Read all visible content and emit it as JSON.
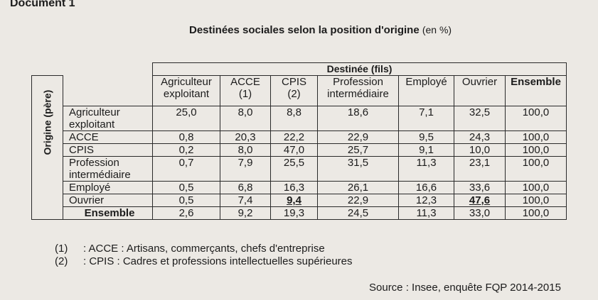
{
  "document_label": "Document 1",
  "title": "Destinées sociales selon la position d'origine",
  "title_unit": "(en %)",
  "destination_header": "Destinée (fils)",
  "origin_header": "Origine (père)",
  "columns": [
    {
      "label_line1": "Agriculteur",
      "label_line2": "exploitant",
      "bold": false
    },
    {
      "label_line1": "ACCE",
      "label_line2": "(1)",
      "bold": false
    },
    {
      "label_line1": "CPIS",
      "label_line2": "(2)",
      "bold": false
    },
    {
      "label_line1": "Profession",
      "label_line2": "intermédiaire",
      "bold": false
    },
    {
      "label_line1": "Employé",
      "label_line2": "",
      "bold": false
    },
    {
      "label_line1": "Ouvrier",
      "label_line2": "",
      "bold": false
    },
    {
      "label_line1": "Ensemble",
      "label_line2": "",
      "bold": true
    }
  ],
  "rows": [
    {
      "label_line1": "Agriculteur",
      "label_line2": "exploitant",
      "values": [
        "25,0",
        "8,0",
        "8,8",
        "18,6",
        "7,1",
        "32,5",
        "100,0"
      ]
    },
    {
      "label_line1": "ACCE",
      "label_line2": "",
      "values": [
        "0,8",
        "20,3",
        "22,2",
        "22,9",
        "9,5",
        "24,3",
        "100,0"
      ]
    },
    {
      "label_line1": "CPIS",
      "label_line2": "",
      "values": [
        "0,2",
        "8,0",
        "47,0",
        "25,7",
        "9,1",
        "10,0",
        "100,0"
      ]
    },
    {
      "label_line1": "Profession",
      "label_line2": "intermédiaire",
      "values": [
        "0,7",
        "7,9",
        "25,5",
        "31,5",
        "11,3",
        "23,1",
        "100,0"
      ]
    },
    {
      "label_line1": "Employé",
      "label_line2": "",
      "values": [
        "0,5",
        "6,8",
        "16,3",
        "26,1",
        "16,6",
        "33,6",
        "100,0"
      ]
    },
    {
      "label_line1": "Ouvrier",
      "label_line2": "",
      "values": [
        "0,5",
        "7,4",
        "9,4",
        "22,9",
        "12,3",
        "47,6",
        "100,0"
      ]
    },
    {
      "label_line1": "Ensemble",
      "label_line2": "",
      "values": [
        "2,6",
        "9,2",
        "19,3",
        "24,5",
        "11,3",
        "33,0",
        "100,0"
      ]
    }
  ],
  "notes": [
    {
      "num": "(1)",
      "text": ": ACCE : Artisans, commerçants, chefs d'entreprise"
    },
    {
      "num": "(2)",
      "text": ": CPIS : Cadres et professions intellectuelles supérieures"
    }
  ],
  "source": "Source : Insee, enquête FQP 2014-2015"
}
